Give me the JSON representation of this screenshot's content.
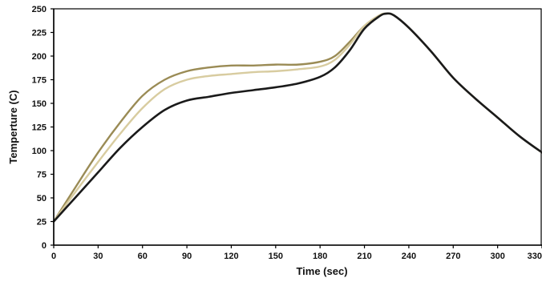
{
  "chart_data": {
    "type": "line",
    "title": "",
    "xlabel": "Time (sec)",
    "ylabel": "Temperture (C)",
    "xlim": [
      0,
      330
    ],
    "ylim": [
      0,
      250
    ],
    "xticks": [
      0,
      30,
      60,
      90,
      120,
      150,
      180,
      210,
      240,
      270,
      300,
      330
    ],
    "yticks": [
      0,
      25,
      50,
      75,
      100,
      125,
      150,
      175,
      200,
      225,
      250
    ],
    "grid": false,
    "legend": "none",
    "series": [
      {
        "color": "#9a8b55",
        "x": [
          0,
          15,
          30,
          45,
          60,
          75,
          90,
          105,
          120,
          135,
          150,
          165,
          180,
          190,
          200,
          210,
          220,
          225,
          230,
          240,
          255,
          270,
          285,
          300,
          315,
          330
        ],
        "y": [
          25,
          62,
          98,
          130,
          158,
          175,
          184,
          188,
          190,
          190,
          191,
          191,
          194,
          200,
          215,
          232,
          243,
          245,
          243,
          230,
          205,
          177,
          155,
          135,
          115,
          98
        ]
      },
      {
        "color": "#d8cca0",
        "x": [
          0,
          15,
          30,
          45,
          60,
          75,
          90,
          105,
          120,
          135,
          150,
          165,
          180,
          190,
          200,
          210,
          220,
          225,
          230,
          240,
          255,
          270,
          285,
          300,
          315,
          330
        ],
        "y": [
          25,
          57,
          88,
          118,
          145,
          165,
          175,
          179,
          181,
          183,
          184,
          186,
          189,
          196,
          212,
          232,
          243,
          245,
          243,
          230,
          205,
          177,
          155,
          135,
          115,
          98
        ]
      },
      {
        "color": "#1a1a1a",
        "x": [
          0,
          15,
          30,
          45,
          60,
          75,
          90,
          105,
          120,
          135,
          150,
          165,
          180,
          190,
          200,
          210,
          220,
          225,
          230,
          240,
          255,
          270,
          285,
          300,
          315,
          330
        ],
        "y": [
          25,
          51,
          77,
          103,
          125,
          143,
          153,
          157,
          161,
          164,
          167,
          171,
          178,
          188,
          206,
          229,
          242,
          245,
          243,
          230,
          205,
          177,
          155,
          135,
          115,
          98
        ]
      }
    ]
  }
}
